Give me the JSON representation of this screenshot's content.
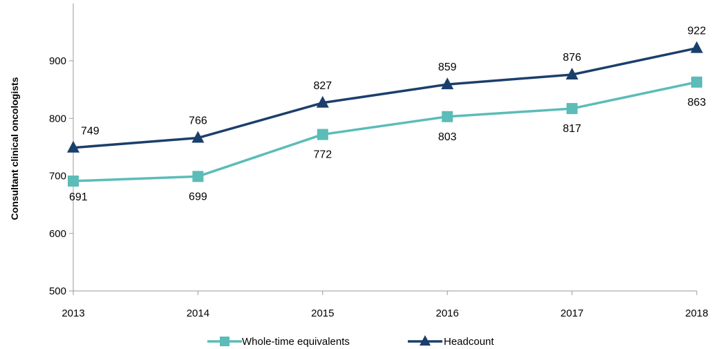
{
  "chart_data": {
    "type": "line",
    "title": "",
    "xlabel": "",
    "ylabel": "Consultant clinical oncologists",
    "categories": [
      "2013",
      "2014",
      "2015",
      "2016",
      "2017",
      "2018"
    ],
    "ylim": [
      500,
      900
    ],
    "yticks": [
      "500",
      "600",
      "700",
      "800",
      "900"
    ],
    "grid": false,
    "legend_position": "bottom",
    "series": [
      {
        "name": "Whole-time equivalents",
        "values": [
          691,
          699,
          772,
          803,
          817,
          863
        ],
        "color": "#5bbcb8",
        "marker": "square",
        "label_position": "below"
      },
      {
        "name": "Headcount",
        "values": [
          749,
          766,
          827,
          859,
          876,
          922
        ],
        "color": "#1b3f6b",
        "marker": "triangle",
        "label_position": "above"
      }
    ]
  }
}
